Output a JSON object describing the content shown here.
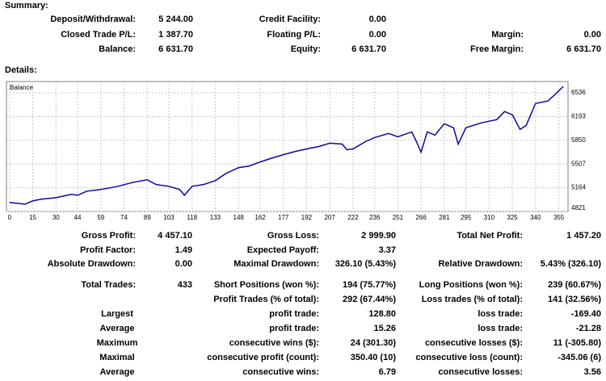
{
  "summary": {
    "title": "Summary:",
    "rows": [
      [
        {
          "label": "Deposit/Withdrawal:",
          "value": "5 244.00"
        },
        {
          "label": "Credit Facility:",
          "value": "0.00"
        }
      ],
      [
        {
          "label": "Closed Trade P/L:",
          "value": "1 387.70"
        },
        {
          "label": "Floating P/L:",
          "value": "0.00"
        },
        {
          "label": "Margin:",
          "value": "0.00"
        }
      ],
      [
        {
          "label": "Balance:",
          "value": "6 631.70"
        },
        {
          "label": "Equity:",
          "value": "6 631.70"
        },
        {
          "label": "Free Margin:",
          "value": "6 631.70"
        }
      ]
    ]
  },
  "details": {
    "title": "Details:",
    "chart_data": {
      "type": "line",
      "x": [
        0,
        10,
        15,
        20,
        30,
        40,
        44,
        50,
        59,
        70,
        80,
        89,
        95,
        103,
        110,
        113,
        118,
        125,
        133,
        140,
        148,
        155,
        162,
        170,
        177,
        185,
        192,
        200,
        207,
        215,
        218,
        222,
        230,
        236,
        245,
        251,
        260,
        263,
        266,
        270,
        275,
        281,
        287,
        290,
        295,
        305,
        315,
        320,
        325,
        330,
        334,
        340,
        348,
        352,
        358
      ],
      "series": [
        {
          "name": "Balance",
          "color": "#0a0a9e",
          "values": [
            4950,
            4927,
            4974,
            4997,
            5021,
            5068,
            5056,
            5115,
            5138,
            5185,
            5244,
            5279,
            5209,
            5185,
            5138,
            5056,
            5185,
            5209,
            5267,
            5373,
            5455,
            5479,
            5538,
            5596,
            5643,
            5690,
            5726,
            5761,
            5808,
            5796,
            5714,
            5726,
            5831,
            5890,
            5949,
            5902,
            5972,
            5831,
            5679,
            5972,
            5925,
            6090,
            6031,
            5796,
            6031,
            6102,
            6149,
            6266,
            6219,
            6008,
            6067,
            6384,
            6419,
            6501,
            6630
          ]
        }
      ],
      "xlim": [
        -2,
        361
      ],
      "ylim": [
        4821,
        6700
      ],
      "xticks": [
        0,
        15,
        30,
        44,
        59,
        74,
        89,
        103,
        118,
        133,
        148,
        162,
        177,
        192,
        207,
        222,
        236,
        251,
        266,
        281,
        295,
        310,
        325,
        340,
        355
      ],
      "yticks": [
        4821,
        5164,
        5507,
        5850,
        6193,
        6536
      ],
      "grid": true
    },
    "rows": [
      [
        {
          "label": "Gross Profit:",
          "value": "4 457.10"
        },
        {
          "label": "Gross Loss:",
          "value": "2 999.90"
        },
        {
          "label": "Total Net Profit:",
          "value": "1 457.20"
        }
      ],
      [
        {
          "label": "Profit Factor:",
          "value": "1.49"
        },
        {
          "label": "Expected Payoff:",
          "value": "3.37"
        }
      ],
      [
        {
          "label": "Absolute Drawdown:",
          "value": "0.00"
        },
        {
          "label": "Maximal Drawdown:",
          "value": "326.10 (5.43%)"
        },
        {
          "label": "Relative Drawdown:",
          "value": "5.43% (326.10)"
        }
      ],
      [
        {
          "label": "Total Trades:",
          "value": "433"
        },
        {
          "label": "Short Positions (won %):",
          "value": "194 (75.77%)"
        },
        {
          "label": "Long Positions (won %):",
          "value": "239 (60.67%)"
        }
      ],
      [
        null,
        {
          "label": "Profit Trades (% of total):",
          "value": "292 (67.44%)"
        },
        {
          "label": "Loss trades (% of total):",
          "value": "141 (32.56%)"
        }
      ],
      [
        {
          "label": "Largest"
        },
        {
          "label": "profit trade:",
          "value": "128.80"
        },
        {
          "label": "loss trade:",
          "value": "-169.40"
        }
      ],
      [
        {
          "label": "Average"
        },
        {
          "label": "profit trade:",
          "value": "15.26"
        },
        {
          "label": "loss trade:",
          "value": "-21.28"
        }
      ],
      [
        {
          "label": "Maximum"
        },
        {
          "label": "consecutive wins ($):",
          "value": "24 (301.30)"
        },
        {
          "label": "consecutive losses ($):",
          "value": "11 (-305.80)"
        }
      ],
      [
        {
          "label": "Maximal"
        },
        {
          "label": "consecutive profit (count):",
          "value": "350.40 (10)"
        },
        {
          "label": "consecutive loss (count):",
          "value": "-345.06 (6)"
        }
      ],
      [
        {
          "label": "Average"
        },
        {
          "label": "consecutive wins:",
          "value": "6.79"
        },
        {
          "label": "consecutive losses:",
          "value": "3.56"
        }
      ]
    ]
  }
}
